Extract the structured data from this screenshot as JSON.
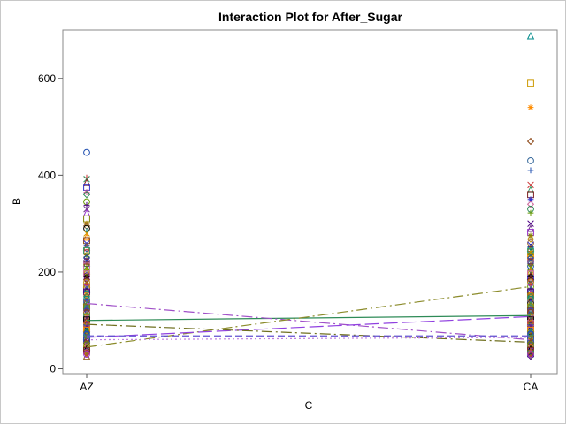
{
  "chart_data": {
    "type": "line",
    "title": "Interaction Plot for After_Sugar",
    "xlabel": "C",
    "ylabel": "B",
    "categories": [
      "AZ",
      "CA"
    ],
    "ylim": [
      -10,
      700
    ],
    "yticks": [
      0,
      200,
      400,
      600
    ],
    "grid": false,
    "legend": "none",
    "lines": [
      {
        "values": [
          100,
          110
        ],
        "color": "#2E8B57",
        "dash": "solid"
      },
      {
        "values": [
          135,
          60
        ],
        "color": "#A050C8",
        "dash": "dashdot"
      },
      {
        "values": [
          45,
          170
        ],
        "color": "#8B8B2A",
        "dash": "dashdot"
      },
      {
        "values": [
          65,
          108
        ],
        "color": "#9040E0",
        "dash": "longdash"
      },
      {
        "values": [
          92,
          55
        ],
        "color": "#707020",
        "dash": "dashdot"
      },
      {
        "values": [
          68,
          68
        ],
        "color": "#6050D0",
        "dash": "dash"
      },
      {
        "values": [
          60,
          65
        ],
        "color": "#C080E0",
        "dash": "dot"
      }
    ],
    "scatter": {
      "AZ": [
        447,
        395,
        392,
        385,
        375,
        365,
        360,
        345,
        338,
        330,
        322,
        310,
        300,
        295,
        290,
        285,
        280,
        272,
        265,
        255,
        248,
        240,
        232,
        225,
        218,
        212,
        205,
        198,
        192,
        186,
        180,
        175,
        170,
        165,
        160,
        155,
        150,
        145,
        140,
        136,
        132,
        128,
        124,
        120,
        116,
        112,
        108,
        104,
        100,
        97,
        94,
        91,
        88,
        85,
        82,
        79,
        76,
        73,
        70,
        67,
        64,
        61,
        58,
        55,
        52,
        49,
        46,
        43,
        40,
        37,
        34,
        31,
        28,
        26
      ],
      "CA": [
        688,
        590,
        540,
        470,
        430,
        410,
        380,
        370,
        360,
        350,
        340,
        330,
        322,
        300,
        290,
        282,
        275,
        268,
        260,
        252,
        245,
        238,
        232,
        225,
        218,
        212,
        205,
        198,
        192,
        186,
        180,
        175,
        170,
        165,
        160,
        155,
        150,
        145,
        140,
        136,
        132,
        128,
        124,
        120,
        116,
        112,
        108,
        104,
        100,
        97,
        94,
        91,
        88,
        85,
        82,
        79,
        76,
        73,
        70,
        67,
        64,
        61,
        58,
        55,
        52,
        49,
        46,
        43,
        40,
        37,
        34,
        31,
        28,
        26
      ]
    },
    "marker_colors": [
      "#1F4FB0",
      "#7E2020",
      "#2E8B57",
      "#6C3483",
      "#B8860B",
      "#008B8B",
      "#8B4513",
      "#CC3333",
      "#3333CC",
      "#669900",
      "#9933CC",
      "#996633",
      "#CC9900",
      "#336699",
      "#339966",
      "#CC6699",
      "#4B0082",
      "#808000",
      "#000000",
      "#FF8C00"
    ],
    "marker_shapes": [
      "circle",
      "plus",
      "x",
      "triangle",
      "square",
      "star",
      "diamond"
    ]
  }
}
